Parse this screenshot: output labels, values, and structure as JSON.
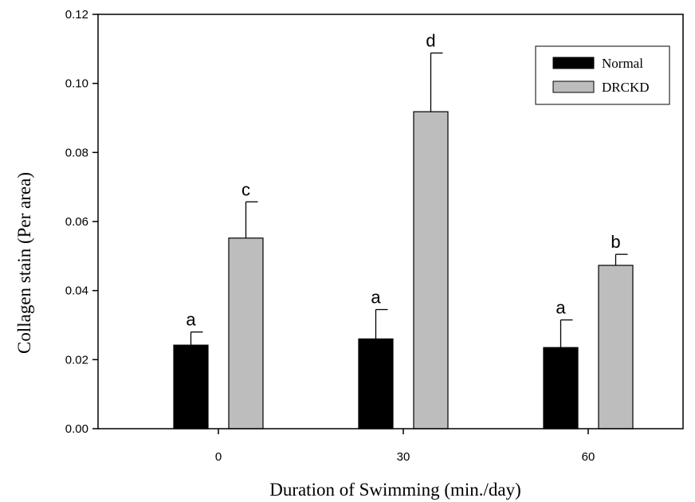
{
  "chart_data": {
    "type": "bar",
    "title": "",
    "xlabel": "Duration of Swimming (min./day)",
    "ylabel": "Collagen stain (Per area)",
    "categories": [
      "0",
      "30",
      "60"
    ],
    "ylim": [
      0,
      0.12
    ],
    "yticks": [
      "0.00",
      "0.02",
      "0.04",
      "0.06",
      "0.08",
      "0.10",
      "0.12"
    ],
    "grid": false,
    "legend_position": "top-right",
    "series": [
      {
        "name": "Normal",
        "color": "#000000",
        "values": [
          0.0242,
          0.026,
          0.0235
        ],
        "error": [
          0.0038,
          0.0085,
          0.008
        ],
        "labels": [
          "a",
          "a",
          "a"
        ]
      },
      {
        "name": "DRCKD",
        "color": "#bdbdbd",
        "values": [
          0.0552,
          0.0918,
          0.0473
        ],
        "error": [
          0.0105,
          0.017,
          0.0032
        ],
        "labels": [
          "c",
          "d",
          "b"
        ]
      }
    ]
  }
}
